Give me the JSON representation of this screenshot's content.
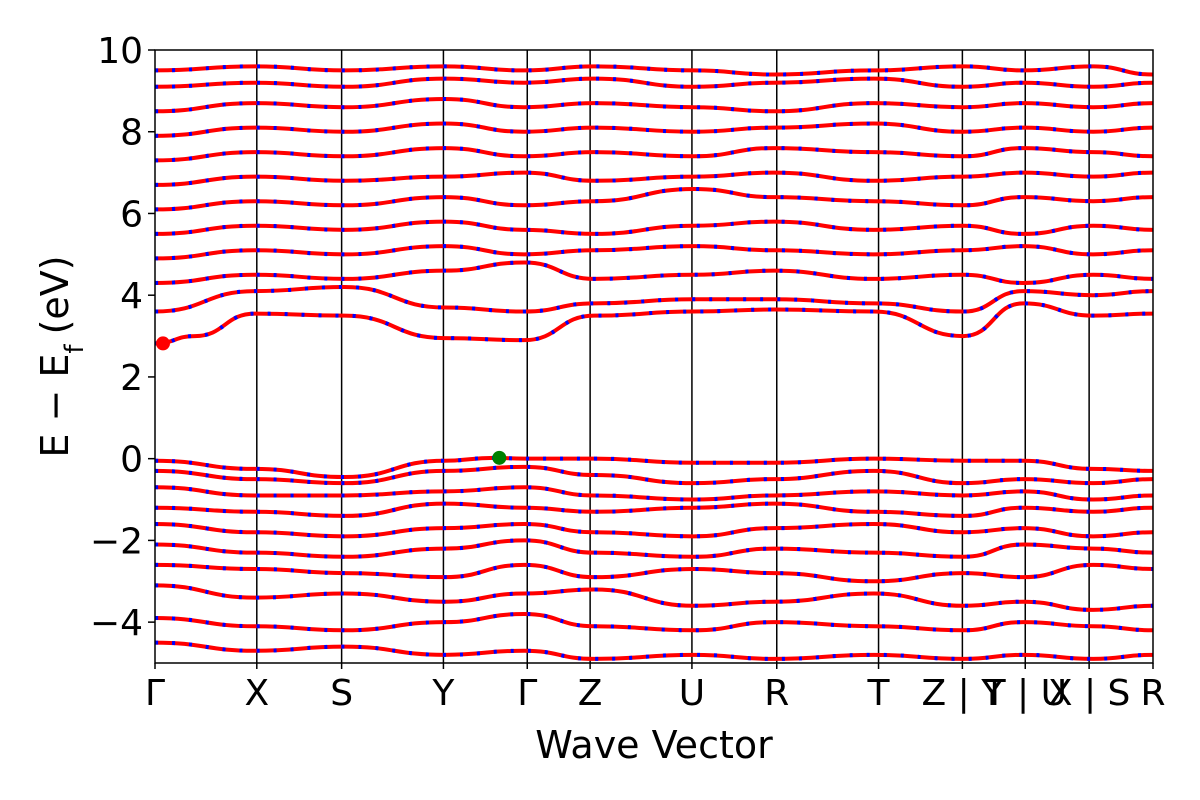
{
  "chart_data": {
    "type": "line",
    "title": "",
    "xlabel": "Wave Vector",
    "ylabel": "E − E_f (eV)",
    "ylabel_main": "E − E",
    "ylabel_sub": "f",
    "ylabel_unit": "(eV)",
    "ylim": [
      -5,
      10
    ],
    "yticks": [
      -4,
      -2,
      0,
      2,
      4,
      6,
      8,
      10
    ],
    "ytick_labels": [
      "−4",
      "−2",
      "0",
      "2",
      "4",
      "6",
      "8",
      "10"
    ],
    "xlim": [
      0,
      1
    ],
    "kpoints": [
      {
        "x": 0.0,
        "label": "Γ"
      },
      {
        "x": 0.102,
        "label": "X"
      },
      {
        "x": 0.187,
        "label": "S"
      },
      {
        "x": 0.289,
        "label": "Y"
      },
      {
        "x": 0.373,
        "label": "Γ"
      },
      {
        "x": 0.436,
        "label": "Z"
      },
      {
        "x": 0.538,
        "label": "U"
      },
      {
        "x": 0.623,
        "label": "R"
      },
      {
        "x": 0.725,
        "label": "T"
      },
      {
        "x": 0.809,
        "label": "Z | Y"
      },
      {
        "x": 0.872,
        "label": "T | U"
      },
      {
        "x": 0.936,
        "label": "X | S"
      },
      {
        "x": 1.0,
        "label": "R"
      }
    ],
    "band_edges": {
      "cbm": {
        "x": 0.008,
        "y": 2.82,
        "color": "#ff0000"
      },
      "vbm": {
        "x": 0.345,
        "y": 0.02,
        "color": "#008000"
      }
    },
    "series": [
      {
        "x": [
          0,
          0.1,
          0.19,
          0.29,
          0.37,
          0.44,
          0.54,
          0.62,
          0.72,
          0.81,
          0.87,
          0.94,
          1.0
        ],
        "y": [
          -4.5,
          -4.7,
          -4.6,
          -4.8,
          -4.7,
          -4.9,
          -4.8,
          -4.9,
          -4.8,
          -4.9,
          -4.8,
          -4.9,
          -4.8
        ]
      },
      {
        "x": [
          0,
          0.1,
          0.19,
          0.29,
          0.37,
          0.44,
          0.54,
          0.62,
          0.72,
          0.81,
          0.87,
          0.94,
          1.0
        ],
        "y": [
          -3.9,
          -4.1,
          -4.2,
          -4.0,
          -3.8,
          -4.1,
          -4.2,
          -4.0,
          -4.1,
          -4.2,
          -4.0,
          -4.1,
          -4.2
        ]
      },
      {
        "x": [
          0,
          0.1,
          0.19,
          0.29,
          0.37,
          0.44,
          0.54,
          0.62,
          0.72,
          0.81,
          0.87,
          0.94,
          1.0
        ],
        "y": [
          -3.1,
          -3.4,
          -3.3,
          -3.5,
          -3.3,
          -3.2,
          -3.6,
          -3.5,
          -3.3,
          -3.6,
          -3.5,
          -3.7,
          -3.6
        ]
      },
      {
        "x": [
          0,
          0.1,
          0.19,
          0.29,
          0.37,
          0.44,
          0.54,
          0.62,
          0.72,
          0.81,
          0.87,
          0.94,
          1.0
        ],
        "y": [
          -2.6,
          -2.7,
          -2.8,
          -2.9,
          -2.6,
          -2.9,
          -2.7,
          -2.8,
          -3.0,
          -2.8,
          -2.9,
          -2.6,
          -2.7
        ]
      },
      {
        "x": [
          0,
          0.1,
          0.19,
          0.29,
          0.37,
          0.44,
          0.54,
          0.62,
          0.72,
          0.81,
          0.87,
          0.94,
          1.0
        ],
        "y": [
          -2.1,
          -2.3,
          -2.4,
          -2.2,
          -2.0,
          -2.3,
          -2.4,
          -2.2,
          -2.3,
          -2.4,
          -2.1,
          -2.2,
          -2.3
        ]
      },
      {
        "x": [
          0,
          0.1,
          0.19,
          0.29,
          0.37,
          0.44,
          0.54,
          0.62,
          0.72,
          0.81,
          0.87,
          0.94,
          1.0
        ],
        "y": [
          -1.6,
          -1.8,
          -1.9,
          -1.7,
          -1.6,
          -1.8,
          -1.9,
          -1.7,
          -1.6,
          -1.8,
          -1.7,
          -1.9,
          -1.8
        ]
      },
      {
        "x": [
          0,
          0.1,
          0.19,
          0.29,
          0.37,
          0.44,
          0.54,
          0.62,
          0.72,
          0.81,
          0.87,
          0.94,
          1.0
        ],
        "y": [
          -1.2,
          -1.3,
          -1.4,
          -1.1,
          -1.2,
          -1.3,
          -1.2,
          -1.1,
          -1.3,
          -1.4,
          -1.2,
          -1.3,
          -1.2
        ]
      },
      {
        "x": [
          0,
          0.1,
          0.19,
          0.29,
          0.37,
          0.44,
          0.54,
          0.62,
          0.72,
          0.81,
          0.87,
          0.94,
          1.0
        ],
        "y": [
          -0.7,
          -0.9,
          -0.9,
          -0.8,
          -0.7,
          -0.9,
          -1.0,
          -0.9,
          -0.8,
          -0.9,
          -0.8,
          -1.0,
          -0.9
        ]
      },
      {
        "x": [
          0,
          0.1,
          0.19,
          0.29,
          0.37,
          0.44,
          0.54,
          0.62,
          0.72,
          0.81,
          0.87,
          0.94,
          1.0
        ],
        "y": [
          -0.3,
          -0.5,
          -0.6,
          -0.3,
          -0.2,
          -0.4,
          -0.6,
          -0.5,
          -0.3,
          -0.6,
          -0.5,
          -0.6,
          -0.5
        ]
      },
      {
        "x": [
          0,
          0.1,
          0.19,
          0.29,
          0.34,
          0.37,
          0.44,
          0.54,
          0.62,
          0.72,
          0.81,
          0.87,
          0.94,
          1.0
        ],
        "y": [
          -0.05,
          -0.25,
          -0.45,
          -0.05,
          0.02,
          0.0,
          0.0,
          -0.1,
          -0.1,
          0.0,
          -0.05,
          -0.05,
          -0.25,
          -0.3
        ]
      },
      {
        "x": [
          0,
          0.04,
          0.1,
          0.19,
          0.29,
          0.37,
          0.44,
          0.54,
          0.62,
          0.72,
          0.81,
          0.87,
          0.94,
          1.0
        ],
        "y": [
          2.82,
          3.0,
          3.55,
          3.5,
          2.95,
          2.9,
          3.5,
          3.6,
          3.65,
          3.6,
          3.0,
          3.8,
          3.5,
          3.55
        ]
      },
      {
        "x": [
          0,
          0.1,
          0.19,
          0.29,
          0.37,
          0.44,
          0.54,
          0.62,
          0.72,
          0.81,
          0.87,
          0.94,
          1.0
        ],
        "y": [
          3.6,
          4.1,
          4.2,
          3.7,
          3.6,
          3.8,
          3.9,
          3.9,
          3.8,
          3.6,
          4.1,
          4.0,
          4.1
        ]
      },
      {
        "x": [
          0,
          0.1,
          0.19,
          0.29,
          0.37,
          0.44,
          0.54,
          0.62,
          0.72,
          0.81,
          0.87,
          0.94,
          1.0
        ],
        "y": [
          4.3,
          4.5,
          4.4,
          4.6,
          4.8,
          4.4,
          4.5,
          4.6,
          4.4,
          4.5,
          4.3,
          4.5,
          4.4
        ]
      },
      {
        "x": [
          0,
          0.1,
          0.19,
          0.29,
          0.37,
          0.44,
          0.54,
          0.62,
          0.72,
          0.81,
          0.87,
          0.94,
          1.0
        ],
        "y": [
          4.9,
          5.1,
          5.0,
          5.2,
          5.0,
          5.1,
          5.2,
          5.1,
          5.0,
          5.1,
          5.2,
          5.0,
          5.1
        ]
      },
      {
        "x": [
          0,
          0.1,
          0.19,
          0.29,
          0.37,
          0.44,
          0.54,
          0.62,
          0.72,
          0.81,
          0.87,
          0.94,
          1.0
        ],
        "y": [
          5.5,
          5.7,
          5.6,
          5.8,
          5.6,
          5.5,
          5.7,
          5.8,
          5.6,
          5.7,
          5.5,
          5.7,
          5.6
        ]
      },
      {
        "x": [
          0,
          0.1,
          0.19,
          0.29,
          0.37,
          0.44,
          0.54,
          0.62,
          0.72,
          0.81,
          0.87,
          0.94,
          1.0
        ],
        "y": [
          6.1,
          6.3,
          6.2,
          6.4,
          6.2,
          6.3,
          6.6,
          6.4,
          6.3,
          6.2,
          6.4,
          6.3,
          6.4
        ]
      },
      {
        "x": [
          0,
          0.1,
          0.19,
          0.29,
          0.37,
          0.44,
          0.54,
          0.62,
          0.72,
          0.81,
          0.87,
          0.94,
          1.0
        ],
        "y": [
          6.7,
          6.9,
          6.8,
          6.9,
          7.0,
          6.8,
          6.9,
          7.0,
          6.8,
          6.9,
          7.0,
          6.9,
          7.0
        ]
      },
      {
        "x": [
          0,
          0.1,
          0.19,
          0.29,
          0.37,
          0.44,
          0.54,
          0.62,
          0.72,
          0.81,
          0.87,
          0.94,
          1.0
        ],
        "y": [
          7.3,
          7.5,
          7.4,
          7.6,
          7.4,
          7.5,
          7.4,
          7.6,
          7.5,
          7.4,
          7.6,
          7.5,
          7.4
        ]
      },
      {
        "x": [
          0,
          0.1,
          0.19,
          0.29,
          0.37,
          0.44,
          0.54,
          0.62,
          0.72,
          0.81,
          0.87,
          0.94,
          1.0
        ],
        "y": [
          7.9,
          8.1,
          8.0,
          8.2,
          8.0,
          8.1,
          8.0,
          8.1,
          8.2,
          8.0,
          8.1,
          8.0,
          8.1
        ]
      },
      {
        "x": [
          0,
          0.1,
          0.19,
          0.29,
          0.37,
          0.44,
          0.54,
          0.62,
          0.72,
          0.81,
          0.87,
          0.94,
          1.0
        ],
        "y": [
          8.5,
          8.7,
          8.6,
          8.8,
          8.6,
          8.7,
          8.6,
          8.5,
          8.7,
          8.6,
          8.7,
          8.6,
          8.7
        ]
      },
      {
        "x": [
          0,
          0.1,
          0.19,
          0.29,
          0.37,
          0.44,
          0.54,
          0.62,
          0.72,
          0.81,
          0.87,
          0.94,
          1.0
        ],
        "y": [
          9.1,
          9.2,
          9.1,
          9.3,
          9.2,
          9.3,
          9.1,
          9.2,
          9.3,
          9.1,
          9.2,
          9.1,
          9.2
        ]
      },
      {
        "x": [
          0,
          0.1,
          0.19,
          0.29,
          0.37,
          0.44,
          0.54,
          0.62,
          0.72,
          0.81,
          0.87,
          0.94,
          1.0
        ],
        "y": [
          9.5,
          9.6,
          9.5,
          9.6,
          9.5,
          9.6,
          9.5,
          9.4,
          9.5,
          9.6,
          9.5,
          9.6,
          9.4
        ]
      }
    ]
  },
  "colors": {
    "band_red": "#ff0000",
    "band_blue": "#0000ff",
    "axis": "#000000",
    "vbm_marker": "#008000",
    "cbm_marker": "#ff0000"
  }
}
